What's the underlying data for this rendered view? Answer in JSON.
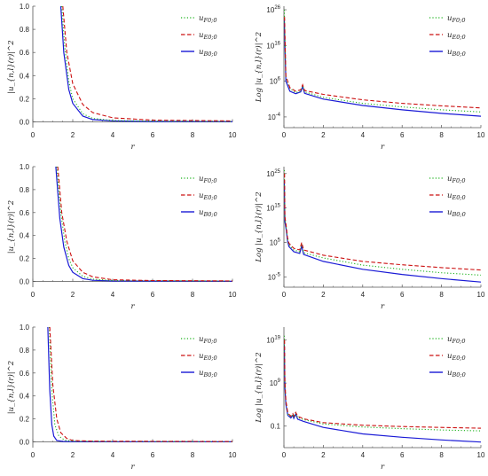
{
  "colors": {
    "F": "#1fb31f",
    "E": "#cc1111",
    "B": "#1a1ad6",
    "axis": "#555555"
  },
  "chart_data": [
    {
      "type": "line",
      "scale": "linear",
      "xlabel": "r",
      "ylabel": "|u_{n,l}(r)|^2",
      "xlim": [
        0,
        10
      ],
      "ylim": [
        -0.05,
        1.0
      ],
      "xticks": [
        "0",
        "2",
        "4",
        "6",
        "8",
        "10"
      ],
      "yticks": [
        "0.0",
        "0.2",
        "0.4",
        "0.6",
        "0.8",
        "1.0"
      ],
      "legend": [
        "F0;0",
        "E0;0",
        "B0;0"
      ],
      "legend_position": "top-right",
      "series": [
        {
          "name": "F0;0",
          "style": "dotted",
          "points": [
            [
              1.45,
              1.0
            ],
            [
              1.6,
              0.65
            ],
            [
              1.8,
              0.35
            ],
            [
              2.0,
              0.2
            ],
            [
              2.5,
              0.07
            ],
            [
              3.0,
              0.03
            ],
            [
              4.0,
              0.012
            ],
            [
              6.0,
              0.006
            ],
            [
              10.0,
              0.004
            ]
          ]
        },
        {
          "name": "E0;0",
          "style": "dashed",
          "points": [
            [
              1.5,
              1.0
            ],
            [
              1.7,
              0.6
            ],
            [
              2.0,
              0.33
            ],
            [
              2.5,
              0.15
            ],
            [
              3.0,
              0.08
            ],
            [
              4.0,
              0.035
            ],
            [
              6.0,
              0.015
            ],
            [
              10.0,
              0.008
            ]
          ]
        },
        {
          "name": "B0;0",
          "style": "solid",
          "points": [
            [
              1.4,
              1.0
            ],
            [
              1.55,
              0.6
            ],
            [
              1.8,
              0.28
            ],
            [
              2.0,
              0.16
            ],
            [
              2.5,
              0.05
            ],
            [
              3.0,
              0.02
            ],
            [
              4.0,
              0.008
            ],
            [
              6.0,
              0.003
            ],
            [
              10.0,
              0.002
            ]
          ]
        }
      ]
    },
    {
      "type": "line",
      "scale": "log",
      "xlabel": "r",
      "ylabel": "Log |u_{n,l}(r)|^2",
      "xlim": [
        0,
        10
      ],
      "ylog": [
        -7,
        27
      ],
      "xticks": [
        "0",
        "2",
        "4",
        "6",
        "8",
        "10"
      ],
      "yticks": [
        {
          "base": "10",
          "exp": "26",
          "e": 26
        },
        {
          "base": "10",
          "exp": "16",
          "e": 16
        },
        {
          "base": "10",
          "exp": "6",
          "e": 6
        },
        {
          "base": "10",
          "exp": "-4",
          "e": -4
        }
      ],
      "legend": [
        "F0;0",
        "E0;0",
        "B0;0"
      ],
      "legend_position": "top-right",
      "series": [
        {
          "name": "F0;0",
          "style": "dotted",
          "points": [
            [
              0.02,
              26.0
            ],
            [
              0.1,
              7.0
            ],
            [
              0.3,
              4.0
            ],
            [
              0.6,
              2.8
            ],
            [
              0.85,
              3.2
            ],
            [
              0.95,
              4.8
            ],
            [
              1.05,
              3.0
            ],
            [
              2.0,
              1.5
            ],
            [
              4.0,
              -0.2
            ],
            [
              6.0,
              -1.2
            ],
            [
              8.0,
              -2.0
            ],
            [
              10.0,
              -2.6
            ]
          ]
        },
        {
          "name": "E0;0",
          "style": "dashed",
          "points": [
            [
              0.03,
              24.0
            ],
            [
              0.1,
              7.5
            ],
            [
              0.3,
              4.2
            ],
            [
              0.6,
              3.2
            ],
            [
              0.85,
              3.6
            ],
            [
              0.95,
              5.0
            ],
            [
              1.05,
              3.4
            ],
            [
              2.0,
              2.3
            ],
            [
              4.0,
              0.8
            ],
            [
              6.0,
              -0.2
            ],
            [
              8.0,
              -0.9
            ],
            [
              10.0,
              -1.5
            ]
          ]
        },
        {
          "name": "B0;0",
          "style": "solid",
          "points": [
            [
              0.02,
              23.0
            ],
            [
              0.1,
              6.0
            ],
            [
              0.3,
              3.2
            ],
            [
              0.6,
              2.5
            ],
            [
              0.85,
              3.0
            ],
            [
              0.95,
              4.5
            ],
            [
              1.05,
              2.6
            ],
            [
              2.0,
              1.0
            ],
            [
              4.0,
              -0.8
            ],
            [
              6.0,
              -2.0
            ],
            [
              8.0,
              -3.0
            ],
            [
              10.0,
              -3.8
            ]
          ]
        }
      ]
    },
    {
      "type": "line",
      "scale": "linear",
      "xlabel": "r",
      "ylabel": "|u_{n,l}(r)|^2",
      "xlim": [
        0,
        10
      ],
      "ylim": [
        -0.05,
        1.0
      ],
      "xticks": [
        "0",
        "2",
        "4",
        "6",
        "8",
        "10"
      ],
      "yticks": [
        "0.0",
        "0.2",
        "0.4",
        "0.6",
        "0.8",
        "1.0"
      ],
      "legend": [
        "F0;0",
        "E0;0",
        "B0;0"
      ],
      "legend_position": "top-right",
      "series": [
        {
          "name": "F0;0",
          "style": "dotted",
          "points": [
            [
              1.2,
              1.0
            ],
            [
              1.4,
              0.6
            ],
            [
              1.6,
              0.35
            ],
            [
              1.8,
              0.2
            ],
            [
              2.0,
              0.12
            ],
            [
              2.5,
              0.045
            ],
            [
              3.0,
              0.02
            ],
            [
              4.0,
              0.008
            ],
            [
              10.0,
              0.003
            ]
          ]
        },
        {
          "name": "E0;0",
          "style": "dashed",
          "points": [
            [
              1.25,
              1.0
            ],
            [
              1.45,
              0.6
            ],
            [
              1.7,
              0.35
            ],
            [
              2.0,
              0.18
            ],
            [
              2.5,
              0.08
            ],
            [
              3.0,
              0.04
            ],
            [
              4.0,
              0.015
            ],
            [
              6.0,
              0.008
            ],
            [
              10.0,
              0.005
            ]
          ]
        },
        {
          "name": "B0;0",
          "style": "solid",
          "points": [
            [
              1.15,
              1.0
            ],
            [
              1.35,
              0.55
            ],
            [
              1.55,
              0.3
            ],
            [
              1.8,
              0.14
            ],
            [
              2.0,
              0.08
            ],
            [
              2.5,
              0.025
            ],
            [
              3.0,
              0.01
            ],
            [
              4.0,
              0.004
            ],
            [
              10.0,
              0.002
            ]
          ]
        }
      ]
    },
    {
      "type": "line",
      "scale": "log",
      "xlabel": "r",
      "ylabel": "Log |u_{n,l}(r)|^2",
      "xlim": [
        0,
        10
      ],
      "ylog": [
        -8,
        27
      ],
      "xticks": [
        "0",
        "2",
        "4",
        "6",
        "8",
        "10"
      ],
      "yticks": [
        {
          "base": "10",
          "exp": "25",
          "e": 25
        },
        {
          "base": "10",
          "exp": "15",
          "e": 15
        },
        {
          "base": "10",
          "exp": "5",
          "e": 5
        },
        {
          "base": "10",
          "exp": "-5",
          "e": -5
        }
      ],
      "legend": [
        "F0;0",
        "E0;0",
        "B0;0"
      ],
      "legend_position": "top-right",
      "series": [
        {
          "name": "F0;0",
          "style": "dotted",
          "points": [
            [
              0.02,
              26.0
            ],
            [
              0.05,
              12.0
            ],
            [
              0.12,
              9.0
            ],
            [
              0.18,
              6.0
            ],
            [
              0.25,
              4.3
            ],
            [
              0.5,
              2.8
            ],
            [
              0.8,
              2.3
            ],
            [
              0.9,
              4.5
            ],
            [
              1.0,
              2.0
            ],
            [
              2.0,
              0.5
            ],
            [
              4.0,
              -1.6
            ],
            [
              6.0,
              -2.8
            ],
            [
              8.0,
              -3.8
            ],
            [
              10.0,
              -4.5
            ]
          ]
        },
        {
          "name": "E0;0",
          "style": "dashed",
          "points": [
            [
              0.03,
              25.0
            ],
            [
              0.05,
              12.5
            ],
            [
              0.12,
              9.5
            ],
            [
              0.18,
              6.5
            ],
            [
              0.25,
              4.8
            ],
            [
              0.5,
              3.3
            ],
            [
              0.8,
              2.8
            ],
            [
              0.9,
              5.0
            ],
            [
              1.0,
              2.8
            ],
            [
              2.0,
              1.3
            ],
            [
              4.0,
              -0.5
            ],
            [
              6.0,
              -1.5
            ],
            [
              8.0,
              -2.3
            ],
            [
              10.0,
              -3.0
            ]
          ]
        },
        {
          "name": "B0;0",
          "style": "solid",
          "points": [
            [
              0.02,
              23.0
            ],
            [
              0.05,
              11.0
            ],
            [
              0.12,
              8.5
            ],
            [
              0.18,
              5.5
            ],
            [
              0.25,
              3.8
            ],
            [
              0.5,
              2.3
            ],
            [
              0.8,
              1.8
            ],
            [
              0.9,
              4.0
            ],
            [
              1.0,
              1.5
            ],
            [
              2.0,
              -0.5
            ],
            [
              4.0,
              -2.8
            ],
            [
              6.0,
              -4.3
            ],
            [
              8.0,
              -5.5
            ],
            [
              10.0,
              -6.5
            ]
          ]
        }
      ]
    },
    {
      "type": "line",
      "scale": "linear",
      "xlabel": "r",
      "ylabel": "|u_{n,l}(r)|^2",
      "xlim": [
        0,
        10
      ],
      "ylim": [
        -0.05,
        1.0
      ],
      "xticks": [
        "0",
        "2",
        "4",
        "6",
        "8",
        "10"
      ],
      "yticks": [
        "0.0",
        "0.2",
        "0.4",
        "0.6",
        "0.8",
        "1.0"
      ],
      "legend": [
        "F0;0",
        "E0;0",
        "B0;0"
      ],
      "legend_position": "top-right",
      "series": [
        {
          "name": "F0;0",
          "style": "dotted",
          "points": [
            [
              0.82,
              1.0
            ],
            [
              0.95,
              0.45
            ],
            [
              1.1,
              0.15
            ],
            [
              1.3,
              0.05
            ],
            [
              1.6,
              0.015
            ],
            [
              2.0,
              0.006
            ],
            [
              4.0,
              0.003
            ],
            [
              10.0,
              0.002
            ]
          ]
        },
        {
          "name": "E0;0",
          "style": "dashed",
          "points": [
            [
              0.85,
              1.0
            ],
            [
              1.0,
              0.5
            ],
            [
              1.2,
              0.2
            ],
            [
              1.4,
              0.08
            ],
            [
              1.7,
              0.03
            ],
            [
              2.0,
              0.012
            ],
            [
              3.0,
              0.006
            ],
            [
              10.0,
              0.003
            ]
          ]
        },
        {
          "name": "B0;0",
          "style": "solid",
          "points": [
            [
              0.75,
              1.0
            ],
            [
              0.85,
              0.45
            ],
            [
              0.95,
              0.15
            ],
            [
              1.05,
              0.05
            ],
            [
              1.2,
              0.012
            ],
            [
              1.5,
              0.004
            ],
            [
              2.0,
              0.002
            ],
            [
              10.0,
              0.001
            ]
          ]
        }
      ]
    },
    {
      "type": "line",
      "scale": "log",
      "xlabel": "r",
      "ylabel": "Log |u_{n,l}(r)|^2",
      "xlim": [
        0,
        10
      ],
      "ylog": [
        -6,
        22
      ],
      "xticks": [
        "0",
        "2",
        "4",
        "6",
        "8",
        "10"
      ],
      "yticks": [
        {
          "base": "10",
          "exp": "19",
          "e": 19
        },
        {
          "base": "10",
          "exp": "9",
          "e": 9
        },
        {
          "base": "",
          "exp": "",
          "label": "0.1",
          "e": -1
        }
      ],
      "legend": [
        "F0;0",
        "E0;0",
        "B0;0"
      ],
      "legend_position": "top-right",
      "series": [
        {
          "name": "F0;0",
          "style": "dotted",
          "points": [
            [
              0.02,
              20.0
            ],
            [
              0.05,
              9.0
            ],
            [
              0.1,
              4.5
            ],
            [
              0.2,
              1.7
            ],
            [
              0.35,
              1.1
            ],
            [
              0.45,
              1.6
            ],
            [
              0.5,
              1.0
            ],
            [
              0.6,
              2.0
            ],
            [
              0.7,
              1.0
            ],
            [
              1.0,
              0.5
            ],
            [
              2.0,
              -0.5
            ],
            [
              4.0,
              -1.2
            ],
            [
              6.0,
              -1.6
            ],
            [
              8.0,
              -1.9
            ],
            [
              10.0,
              -2.1
            ]
          ]
        },
        {
          "name": "E0;0",
          "style": "dashed",
          "points": [
            [
              0.03,
              19.0
            ],
            [
              0.05,
              9.5
            ],
            [
              0.1,
              5.0
            ],
            [
              0.2,
              2.0
            ],
            [
              0.35,
              1.3
            ],
            [
              0.45,
              1.9
            ],
            [
              0.5,
              1.3
            ],
            [
              0.6,
              2.2
            ],
            [
              0.7,
              1.3
            ],
            [
              1.0,
              0.7
            ],
            [
              2.0,
              -0.2
            ],
            [
              4.0,
              -0.8
            ],
            [
              6.0,
              -1.1
            ],
            [
              8.0,
              -1.3
            ],
            [
              10.0,
              -1.5
            ]
          ]
        },
        {
          "name": "B0;0",
          "style": "solid",
          "points": [
            [
              0.02,
              18.0
            ],
            [
              0.05,
              8.0
            ],
            [
              0.1,
              4.0
            ],
            [
              0.2,
              1.5
            ],
            [
              0.35,
              0.9
            ],
            [
              0.45,
              1.5
            ],
            [
              0.5,
              0.8
            ],
            [
              0.6,
              1.8
            ],
            [
              0.7,
              0.6
            ],
            [
              1.0,
              0.1
            ],
            [
              2.0,
              -1.3
            ],
            [
              4.0,
              -2.8
            ],
            [
              6.0,
              -3.6
            ],
            [
              8.0,
              -4.2
            ],
            [
              10.0,
              -4.7
            ]
          ]
        }
      ]
    }
  ]
}
